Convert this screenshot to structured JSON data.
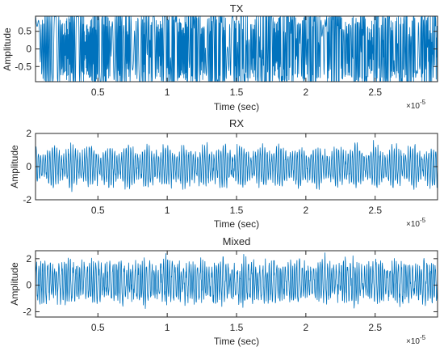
{
  "figure": {
    "background": "#ffffff",
    "line_color": "#0072BD",
    "axis_color": "#262626"
  },
  "chart_data": [
    {
      "type": "line",
      "title": "TX",
      "xlabel": "Time (sec)",
      "ylabel": "Amplitude",
      "x_exponent_label": "×10",
      "x_exponent": "-5",
      "xlim": [
        0.05,
        2.95
      ],
      "ylim": [
        -0.93,
        0.93
      ],
      "xticks": [
        0.5,
        1,
        1.5,
        2,
        2.5
      ],
      "xtick_labels": [
        "0.5",
        "1",
        "1.5",
        "2",
        "2.5"
      ],
      "yticks": [
        -0.5,
        0,
        0.5
      ],
      "ytick_labels": [
        "-0.5",
        "0",
        "0.5"
      ],
      "signal": {
        "description_units": "time in units of 1e-5 s",
        "envelope_amplitude": 0.92,
        "carrier_cycles_per_unit": 22,
        "burst_period": 0.17,
        "sample_step": 0.002
      },
      "series": [
        {
          "color": "#0072BD"
        }
      ]
    },
    {
      "type": "line",
      "title": "RX",
      "xlabel": "Time (sec)",
      "ylabel": "Amplitude",
      "x_exponent_label": "×10",
      "x_exponent": "-5",
      "xlim": [
        0.05,
        2.95
      ],
      "ylim": [
        -2,
        2
      ],
      "xticks": [
        0.5,
        1,
        1.5,
        2,
        2.5
      ],
      "xtick_labels": [
        "0.5",
        "1",
        "1.5",
        "2",
        "2.5"
      ],
      "yticks": [
        -2,
        0,
        2
      ],
      "ytick_labels": [
        "-2",
        "0",
        "2"
      ],
      "signal": {
        "amplitude": 1.1,
        "carrier_cycles_per_unit": 60,
        "noise": 0.3,
        "sample_step": 0.002
      },
      "series": [
        {
          "color": "#0072BD"
        }
      ]
    },
    {
      "type": "line",
      "title": "Mixed",
      "xlabel": "Time (sec)",
      "ylabel": "Amplitude",
      "x_exponent_label": "×10",
      "x_exponent": "-5",
      "xlim": [
        0.05,
        2.95
      ],
      "ylim": [
        -2.4,
        2.6
      ],
      "xticks": [
        0.5,
        1,
        1.5,
        2,
        2.5
      ],
      "xtick_labels": [
        "0.5",
        "1",
        "1.5",
        "2",
        "2.5"
      ],
      "yticks": [
        -2,
        0,
        2
      ],
      "ytick_labels": [
        "-2",
        "0",
        "2"
      ],
      "signal": {
        "amplitude": 1.2,
        "carrier_cycles_per_unit": 60,
        "noise": 0.55,
        "sample_step": 0.002
      },
      "series": [
        {
          "color": "#0072BD"
        }
      ]
    }
  ]
}
